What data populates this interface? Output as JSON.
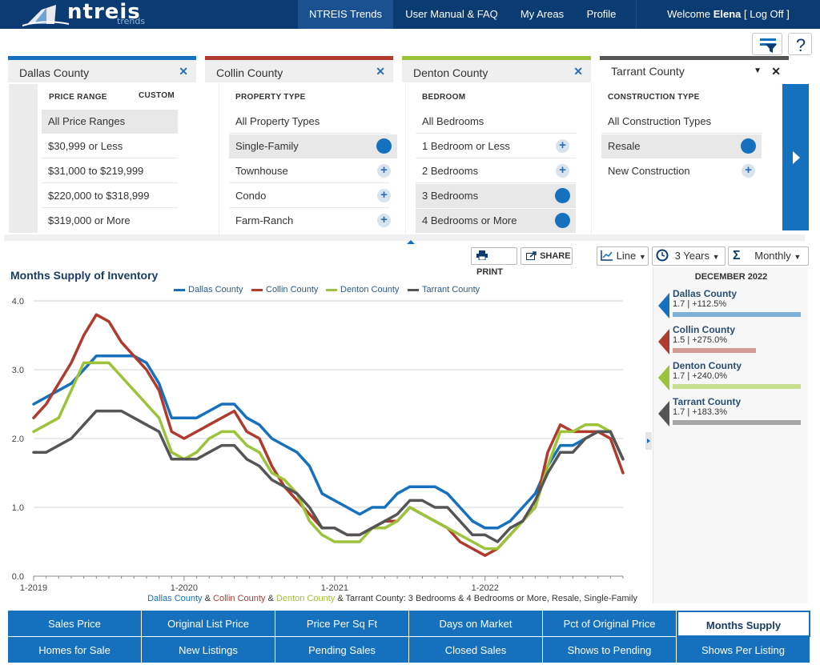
{
  "nav": {
    "brand": "ntreis",
    "brand_sub": "trends",
    "items": [
      "NTREIS Trends",
      "User Manual & FAQ",
      "My Areas",
      "Profile"
    ],
    "welcome_prefix": "Welcome",
    "user": "Elena",
    "logoff": "[ Log Off ]"
  },
  "tabs": [
    {
      "label": "Dallas County",
      "color": "#1570be"
    },
    {
      "label": "Collin County",
      "color": "#b03a2e"
    },
    {
      "label": "Denton County",
      "color": "#9cc33a"
    },
    {
      "label": "Tarrant County",
      "color": "#555555"
    }
  ],
  "filters": {
    "price": {
      "head": "PRICE RANGE",
      "custom": "CUSTOM",
      "options": [
        "All Price Ranges",
        "$30,999 or Less",
        "$31,000 to $219,999",
        "$220,000 to $318,999",
        "$319,000 or More"
      ]
    },
    "property": {
      "head": "PROPERTY TYPE",
      "options": [
        "All Property Types",
        "Single-Family",
        "Townhouse",
        "Condo",
        "Farm-Ranch"
      ]
    },
    "bedroom": {
      "head": "BEDROOM",
      "options": [
        "All Bedrooms",
        "1 Bedroom or Less",
        "2 Bedrooms",
        "3 Bedrooms",
        "4 Bedrooms or More"
      ]
    },
    "construction": {
      "head": "CONSTRUCTION TYPE",
      "options": [
        "All Construction Types",
        "Resale",
        "New Construction"
      ]
    }
  },
  "toolbar": {
    "print": "PRINT",
    "share": "SHARE",
    "chart_type": "Line",
    "range": "3 Years",
    "interval": "Monthly"
  },
  "side": {
    "heading": "DECEMBER 2022",
    "cards": [
      {
        "name": "Dallas County",
        "value": "1.7 | +112.5%",
        "color": "#1570be",
        "bar": "#7fb0d8"
      },
      {
        "name": "Collin County",
        "value": "1.5 | +275.0%",
        "color": "#b03a2e",
        "bar": "#d39a94"
      },
      {
        "name": "Denton County",
        "value": "1.7 | +240.0%",
        "color": "#9cc33a",
        "bar": "#c8de8f"
      },
      {
        "name": "Tarrant County",
        "value": "1.7 | +183.3%",
        "color": "#555555",
        "bar": "#a6a6a6"
      }
    ]
  },
  "caption": {
    "parts": [
      "Dallas County",
      " & ",
      "Collin County",
      " & ",
      "Denton County",
      " & ",
      "Tarrant County: 3 Bedrooms & 4 Bedrooms or More, Resale, Single-Family"
    ]
  },
  "metrics": {
    "row1": [
      "Sales Price",
      "Original List Price",
      "Price Per Sq Ft",
      "Days on Market",
      "Pct of Original Price",
      "Months Supply"
    ],
    "row2": [
      "Homes for Sale",
      "New Listings",
      "Pending Sales",
      "Closed Sales",
      "Shows to Pending",
      "Shows Per Listing"
    ]
  },
  "chart_data": {
    "type": "line",
    "title": "Months Supply of Inventory",
    "x": [
      "1-2019",
      "2-2019",
      "3-2019",
      "4-2019",
      "5-2019",
      "6-2019",
      "7-2019",
      "8-2019",
      "9-2019",
      "10-2019",
      "11-2019",
      "12-2019",
      "1-2020",
      "2-2020",
      "3-2020",
      "4-2020",
      "5-2020",
      "6-2020",
      "7-2020",
      "8-2020",
      "9-2020",
      "10-2020",
      "11-2020",
      "12-2020",
      "1-2021",
      "2-2021",
      "3-2021",
      "4-2021",
      "5-2021",
      "6-2021",
      "7-2021",
      "8-2021",
      "9-2021",
      "10-2021",
      "11-2021",
      "12-2021",
      "1-2022",
      "2-2022",
      "3-2022",
      "4-2022",
      "5-2022",
      "6-2022",
      "7-2022",
      "8-2022",
      "9-2022",
      "10-2022",
      "11-2022",
      "12-2022"
    ],
    "xticks": [
      "1-2019",
      "1-2020",
      "1-2021",
      "1-2022"
    ],
    "ylim": [
      0,
      4
    ],
    "yticks": [
      "0.0",
      "1.0",
      "2.0",
      "3.0",
      "4.0"
    ],
    "legend_position": "top",
    "series": [
      {
        "name": "Dallas County",
        "color": "#1570be",
        "values": [
          2.5,
          2.6,
          2.7,
          2.8,
          3.0,
          3.2,
          3.2,
          3.2,
          3.2,
          3.1,
          2.8,
          2.3,
          2.3,
          2.3,
          2.4,
          2.5,
          2.5,
          2.3,
          2.2,
          2.0,
          1.9,
          1.8,
          1.6,
          1.2,
          1.1,
          1.0,
          0.9,
          1.0,
          1.0,
          1.2,
          1.3,
          1.3,
          1.3,
          1.2,
          1.0,
          0.8,
          0.7,
          0.7,
          0.8,
          1.0,
          1.2,
          1.6,
          1.9,
          1.9,
          2.0,
          2.1,
          2.1,
          1.7
        ]
      },
      {
        "name": "Collin County",
        "color": "#b03a2e",
        "values": [
          2.3,
          2.5,
          2.8,
          3.1,
          3.5,
          3.8,
          3.7,
          3.4,
          3.2,
          3.0,
          2.7,
          2.1,
          2.0,
          2.1,
          2.2,
          2.3,
          2.4,
          2.1,
          2.0,
          1.6,
          1.3,
          1.1,
          0.9,
          0.7,
          0.7,
          0.6,
          0.6,
          0.7,
          0.8,
          0.8,
          1.0,
          0.9,
          0.8,
          0.7,
          0.5,
          0.4,
          0.3,
          0.4,
          0.6,
          0.8,
          1.0,
          1.8,
          2.2,
          2.1,
          2.1,
          2.1,
          2.0,
          1.5
        ]
      },
      {
        "name": "Denton County",
        "color": "#9cc33a",
        "values": [
          2.1,
          2.2,
          2.3,
          2.7,
          3.1,
          3.1,
          3.1,
          2.9,
          2.7,
          2.5,
          2.3,
          1.8,
          1.7,
          1.8,
          2.0,
          2.1,
          2.1,
          1.9,
          1.8,
          1.5,
          1.4,
          1.2,
          0.8,
          0.6,
          0.5,
          0.5,
          0.5,
          0.7,
          0.7,
          0.8,
          1.0,
          0.9,
          0.8,
          0.7,
          0.6,
          0.5,
          0.4,
          0.4,
          0.6,
          0.8,
          1.0,
          1.6,
          2.1,
          2.1,
          2.2,
          2.2,
          2.1,
          1.7
        ]
      },
      {
        "name": "Tarrant County",
        "color": "#555555",
        "values": [
          1.8,
          1.8,
          1.9,
          2.0,
          2.2,
          2.4,
          2.4,
          2.4,
          2.3,
          2.2,
          2.1,
          1.7,
          1.7,
          1.7,
          1.8,
          1.9,
          1.9,
          1.7,
          1.6,
          1.4,
          1.3,
          1.2,
          1.0,
          0.7,
          0.7,
          0.6,
          0.6,
          0.7,
          0.8,
          0.9,
          1.1,
          1.1,
          1.0,
          1.0,
          0.8,
          0.6,
          0.6,
          0.5,
          0.7,
          0.8,
          1.1,
          1.5,
          1.8,
          1.8,
          2.0,
          2.1,
          2.1,
          1.7
        ]
      }
    ]
  }
}
